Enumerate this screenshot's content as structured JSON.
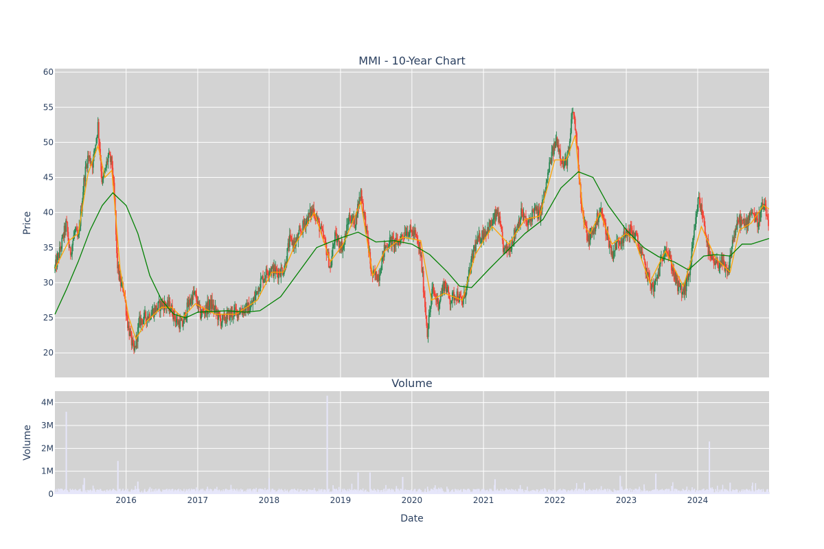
{
  "chart_data": [
    {
      "type": "candlestick",
      "title": "MMI - 10-Year Chart",
      "xlabel": "",
      "ylabel": "Price",
      "ylim": [
        16.5,
        60.5
      ],
      "yticks": [
        20,
        25,
        30,
        35,
        40,
        45,
        50,
        55,
        60
      ],
      "xlim": [
        "2015-01-02",
        "2024-12-31"
      ],
      "grid": true,
      "colors": {
        "increasing": "#2e8b57",
        "decreasing": "#f44336",
        "ma_short": "#ffa500",
        "ma_long": "#008000",
        "plot_bg": "#d3d3d3"
      },
      "price_path": [
        [
          "2015-01-02",
          32.0
        ],
        [
          "2015-02-01",
          35.0
        ],
        [
          "2015-03-01",
          38.5
        ],
        [
          "2015-03-20",
          34.0
        ],
        [
          "2015-04-15",
          37.5
        ],
        [
          "2015-05-01",
          36.0
        ],
        [
          "2015-06-01",
          45.0
        ],
        [
          "2015-06-20",
          48.0
        ],
        [
          "2015-07-15",
          47.0
        ],
        [
          "2015-08-10",
          52.5
        ],
        [
          "2015-09-01",
          44.0
        ],
        [
          "2015-10-01",
          48.0
        ],
        [
          "2015-10-20",
          47.0
        ],
        [
          "2015-11-05",
          40.5
        ],
        [
          "2015-11-15",
          33.0
        ],
        [
          "2015-12-01",
          30.0
        ],
        [
          "2015-12-20",
          29.0
        ],
        [
          "2016-01-10",
          24.0
        ],
        [
          "2016-02-10",
          20.0
        ],
        [
          "2016-03-10",
          24.5
        ],
        [
          "2016-05-01",
          25.5
        ],
        [
          "2016-07-01",
          27.0
        ],
        [
          "2016-08-15",
          26.5
        ],
        [
          "2016-09-15",
          24.5
        ],
        [
          "2016-10-15",
          24.0
        ],
        [
          "2016-11-15",
          27.0
        ],
        [
          "2016-12-15",
          28.5
        ],
        [
          "2017-01-15",
          25.5
        ],
        [
          "2017-03-10",
          27.0
        ],
        [
          "2017-05-01",
          24.5
        ],
        [
          "2017-06-15",
          25.5
        ],
        [
          "2017-08-01",
          26.0
        ],
        [
          "2017-10-01",
          26.5
        ],
        [
          "2017-11-15",
          30.0
        ],
        [
          "2018-01-01",
          32.0
        ],
        [
          "2018-02-15",
          31.5
        ],
        [
          "2018-03-20",
          32.0
        ],
        [
          "2018-04-15",
          36.0
        ],
        [
          "2018-05-15",
          35.5
        ],
        [
          "2018-07-01",
          38.5
        ],
        [
          "2018-08-15",
          40.5
        ],
        [
          "2018-09-15",
          38.0
        ],
        [
          "2018-10-15",
          35.5
        ],
        [
          "2018-11-10",
          32.0
        ],
        [
          "2018-12-01",
          36.5
        ],
        [
          "2019-01-15",
          35.0
        ],
        [
          "2019-02-15",
          39.5
        ],
        [
          "2019-03-15",
          38.5
        ],
        [
          "2019-04-15",
          43.0
        ],
        [
          "2019-05-15",
          37.0
        ],
        [
          "2019-06-10",
          31.0
        ],
        [
          "2019-07-15",
          31.0
        ],
        [
          "2019-08-15",
          35.0
        ],
        [
          "2019-09-15",
          36.0
        ],
        [
          "2019-10-15",
          35.5
        ],
        [
          "2019-12-01",
          37.5
        ],
        [
          "2020-01-15",
          37.0
        ],
        [
          "2020-02-15",
          34.0
        ],
        [
          "2020-03-20",
          23.0
        ],
        [
          "2020-04-15",
          29.0
        ],
        [
          "2020-05-15",
          27.0
        ],
        [
          "2020-06-15",
          30.0
        ],
        [
          "2020-07-15",
          27.5
        ],
        [
          "2020-08-15",
          28.5
        ],
        [
          "2020-09-15",
          27.0
        ],
        [
          "2020-10-15",
          30.5
        ],
        [
          "2020-11-15",
          35.0
        ],
        [
          "2020-12-15",
          36.5
        ],
        [
          "2021-02-15",
          38.5
        ],
        [
          "2021-03-15",
          40.0
        ],
        [
          "2021-04-15",
          34.5
        ],
        [
          "2021-05-15",
          35.0
        ],
        [
          "2021-06-15",
          37.5
        ],
        [
          "2021-07-15",
          40.0
        ],
        [
          "2021-08-15",
          38.0
        ],
        [
          "2021-09-15",
          40.5
        ],
        [
          "2021-10-15",
          39.5
        ],
        [
          "2021-11-15",
          43.5
        ],
        [
          "2021-12-10",
          47.5
        ],
        [
          "2022-01-10",
          50.5
        ],
        [
          "2022-02-15",
          46.5
        ],
        [
          "2022-03-15",
          48.5
        ],
        [
          "2022-04-01",
          55.0
        ],
        [
          "2022-04-20",
          51.0
        ],
        [
          "2022-05-20",
          40.0
        ],
        [
          "2022-06-20",
          36.0
        ],
        [
          "2022-07-20",
          37.5
        ],
        [
          "2022-08-20",
          40.5
        ],
        [
          "2022-09-20",
          37.5
        ],
        [
          "2022-10-20",
          34.0
        ],
        [
          "2022-11-20",
          36.0
        ],
        [
          "2022-12-20",
          36.5
        ],
        [
          "2023-01-20",
          37.5
        ],
        [
          "2023-02-20",
          36.5
        ],
        [
          "2023-03-20",
          34.0
        ],
        [
          "2023-04-20",
          31.0
        ],
        [
          "2023-05-20",
          29.0
        ],
        [
          "2023-06-20",
          32.0
        ],
        [
          "2023-07-20",
          35.5
        ],
        [
          "2023-08-20",
          32.5
        ],
        [
          "2023-09-20",
          29.5
        ],
        [
          "2023-10-20",
          28.5
        ],
        [
          "2023-11-20",
          31.5
        ],
        [
          "2023-12-15",
          37.0
        ],
        [
          "2024-01-05",
          42.0
        ],
        [
          "2024-02-01",
          39.0
        ],
        [
          "2024-03-01",
          33.5
        ],
        [
          "2024-04-01",
          32.5
        ],
        [
          "2024-05-01",
          33.0
        ],
        [
          "2024-06-01",
          31.0
        ],
        [
          "2024-07-01",
          36.5
        ],
        [
          "2024-08-01",
          39.0
        ],
        [
          "2024-09-01",
          38.0
        ],
        [
          "2024-10-01",
          40.5
        ],
        [
          "2024-11-01",
          38.5
        ],
        [
          "2024-12-01",
          41.0
        ],
        [
          "2024-12-31",
          38.5
        ]
      ],
      "ma_short": [
        [
          "2015-01-02",
          32.0
        ],
        [
          "2015-03-15",
          36.0
        ],
        [
          "2015-05-01",
          37.0
        ],
        [
          "2015-06-20",
          45.5
        ],
        [
          "2015-08-10",
          49.5
        ],
        [
          "2015-09-15",
          45.0
        ],
        [
          "2015-10-20",
          46.0
        ],
        [
          "2015-12-01",
          32.0
        ],
        [
          "2016-01-15",
          25.0
        ],
        [
          "2016-02-20",
          22.0
        ],
        [
          "2016-04-15",
          24.5
        ],
        [
          "2016-07-01",
          26.5
        ],
        [
          "2016-08-20",
          26.5
        ],
        [
          "2016-10-15",
          25.0
        ],
        [
          "2016-12-20",
          27.0
        ],
        [
          "2017-04-01",
          25.5
        ],
        [
          "2017-07-15",
          25.5
        ],
        [
          "2017-11-01",
          27.5
        ],
        [
          "2018-01-15",
          31.5
        ],
        [
          "2018-03-15",
          31.5
        ],
        [
          "2018-05-15",
          35.5
        ],
        [
          "2018-08-20",
          40.0
        ],
        [
          "2018-11-10",
          33.0
        ],
        [
          "2019-01-15",
          35.5
        ],
        [
          "2019-04-15",
          41.5
        ],
        [
          "2019-06-15",
          31.0
        ],
        [
          "2019-08-15",
          34.5
        ],
        [
          "2019-11-15",
          36.5
        ],
        [
          "2020-02-15",
          36.0
        ],
        [
          "2020-04-10",
          27.5
        ],
        [
          "2020-06-15",
          28.5
        ],
        [
          "2020-09-15",
          27.5
        ],
        [
          "2020-11-20",
          34.0
        ],
        [
          "2021-02-15",
          38.0
        ],
        [
          "2021-05-10",
          35.5
        ],
        [
          "2021-08-01",
          39.0
        ],
        [
          "2021-10-15",
          39.5
        ],
        [
          "2022-01-01",
          47.5
        ],
        [
          "2022-03-01",
          47.5
        ],
        [
          "2022-04-15",
          51.0
        ],
        [
          "2022-06-01",
          38.0
        ],
        [
          "2022-07-01",
          37.0
        ],
        [
          "2022-08-20",
          40.0
        ],
        [
          "2022-10-20",
          35.5
        ],
        [
          "2023-01-01",
          37.0
        ],
        [
          "2023-02-15",
          36.0
        ],
        [
          "2023-05-01",
          30.0
        ],
        [
          "2023-07-20",
          34.5
        ],
        [
          "2023-10-20",
          29.5
        ],
        [
          "2023-12-20",
          35.0
        ],
        [
          "2024-01-20",
          38.0
        ],
        [
          "2024-04-01",
          33.5
        ],
        [
          "2024-06-15",
          31.5
        ],
        [
          "2024-08-01",
          37.5
        ],
        [
          "2024-10-01",
          38.5
        ],
        [
          "2024-12-01",
          41.0
        ],
        [
          "2024-12-31",
          40.5
        ]
      ],
      "ma_long": [
        [
          "2015-01-02",
          25.5
        ],
        [
          "2015-03-01",
          29.0
        ],
        [
          "2015-05-01",
          33.0
        ],
        [
          "2015-07-01",
          37.5
        ],
        [
          "2015-09-01",
          41.0
        ],
        [
          "2015-10-25",
          42.8
        ],
        [
          "2016-01-01",
          41.0
        ],
        [
          "2016-03-01",
          37.0
        ],
        [
          "2016-05-01",
          31.0
        ],
        [
          "2016-07-01",
          27.5
        ],
        [
          "2016-09-01",
          25.5
        ],
        [
          "2016-11-01",
          25.0
        ],
        [
          "2017-01-01",
          25.8
        ],
        [
          "2017-06-01",
          26.0
        ],
        [
          "2017-09-01",
          25.8
        ],
        [
          "2017-11-15",
          26.0
        ],
        [
          "2018-03-01",
          28.0
        ],
        [
          "2018-06-01",
          31.5
        ],
        [
          "2018-09-01",
          35.0
        ],
        [
          "2018-11-01",
          35.7
        ],
        [
          "2019-01-15",
          36.5
        ],
        [
          "2019-04-01",
          37.2
        ],
        [
          "2019-07-01",
          35.8
        ],
        [
          "2019-10-01",
          36.0
        ],
        [
          "2020-01-01",
          35.5
        ],
        [
          "2020-04-01",
          34.0
        ],
        [
          "2020-07-01",
          31.5
        ],
        [
          "2020-09-01",
          29.5
        ],
        [
          "2020-11-01",
          29.3
        ],
        [
          "2021-02-01",
          32.0
        ],
        [
          "2021-05-01",
          34.5
        ],
        [
          "2021-08-01",
          37.0
        ],
        [
          "2021-11-01",
          39.0
        ],
        [
          "2022-02-01",
          43.5
        ],
        [
          "2022-05-01",
          45.8
        ],
        [
          "2022-07-15",
          45.0
        ],
        [
          "2022-10-01",
          41.0
        ],
        [
          "2023-01-01",
          37.5
        ],
        [
          "2023-04-01",
          35.0
        ],
        [
          "2023-06-15",
          33.7
        ],
        [
          "2023-09-01",
          33.0
        ],
        [
          "2023-11-15",
          31.8
        ],
        [
          "2024-02-01",
          33.8
        ],
        [
          "2024-04-01",
          34.0
        ],
        [
          "2024-06-15",
          33.8
        ],
        [
          "2024-08-15",
          35.5
        ],
        [
          "2024-10-01",
          35.5
        ],
        [
          "2024-12-31",
          36.3
        ]
      ]
    },
    {
      "type": "bar",
      "title": "Volume",
      "xlabel": "Date",
      "ylabel": "Volume",
      "ylim": [
        0,
        4500000
      ],
      "yticks": [
        0,
        1000000,
        2000000,
        3000000,
        4000000
      ],
      "ytick_labels": [
        "0",
        "1M",
        "2M",
        "3M",
        "4M"
      ],
      "xticks": [
        "2016-01-01",
        "2017-01-01",
        "2018-01-01",
        "2019-01-01",
        "2020-01-01",
        "2021-01-01",
        "2022-01-01",
        "2023-01-01",
        "2024-01-01"
      ],
      "xtick_labels": [
        "2016",
        "2017",
        "2018",
        "2019",
        "2020",
        "2021",
        "2022",
        "2023",
        "2024"
      ],
      "bar_color": "#e6e6fa",
      "spikes": [
        [
          "2015-03-01",
          3600000
        ],
        [
          "2015-11-20",
          1450000
        ],
        [
          "2015-06-01",
          700000
        ],
        [
          "2016-03-01",
          550000
        ],
        [
          "2018-01-01",
          700000
        ],
        [
          "2018-10-25",
          4300000
        ],
        [
          "2019-04-01",
          950000
        ],
        [
          "2019-06-01",
          950000
        ],
        [
          "2019-11-15",
          750000
        ],
        [
          "2021-03-01",
          650000
        ],
        [
          "2022-06-01",
          500000
        ],
        [
          "2022-12-01",
          800000
        ],
        [
          "2023-06-01",
          900000
        ],
        [
          "2024-03-01",
          2300000
        ],
        [
          "2024-06-15",
          500000
        ]
      ],
      "baseline_volume": 160000
    }
  ]
}
